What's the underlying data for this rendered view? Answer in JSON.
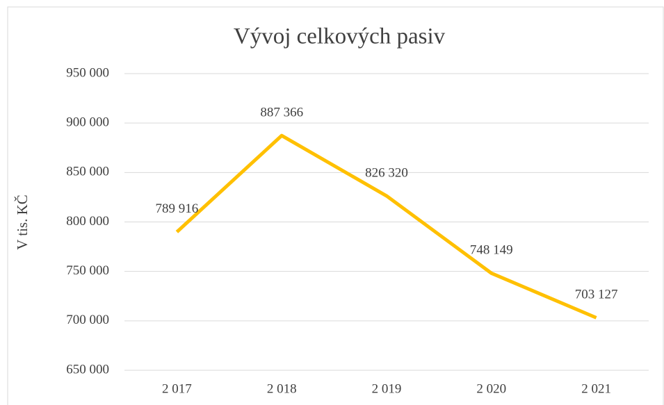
{
  "chart_data": {
    "type": "line",
    "title": "Vývoj celkových pasiv",
    "y_label": "V tis. KČ",
    "categories": [
      "2 017",
      "2 018",
      "2 019",
      "2 020",
      "2 021"
    ],
    "values": [
      789916,
      887366,
      826320,
      748149,
      703127
    ],
    "value_labels": [
      "789 916",
      "887 366",
      "826 320",
      "748 149",
      "703 127"
    ],
    "color": "#FFC000",
    "ylim": [
      650000,
      950000
    ],
    "yticks": [
      {
        "value": 650000,
        "label": "650 000"
      },
      {
        "value": 700000,
        "label": "700 000"
      },
      {
        "value": 750000,
        "label": "750 000"
      },
      {
        "value": 800000,
        "label": "800 000"
      },
      {
        "value": 850000,
        "label": "850 000"
      },
      {
        "value": 900000,
        "label": "900 000"
      },
      {
        "value": 950000,
        "label": "950 000"
      }
    ],
    "grid": true
  }
}
